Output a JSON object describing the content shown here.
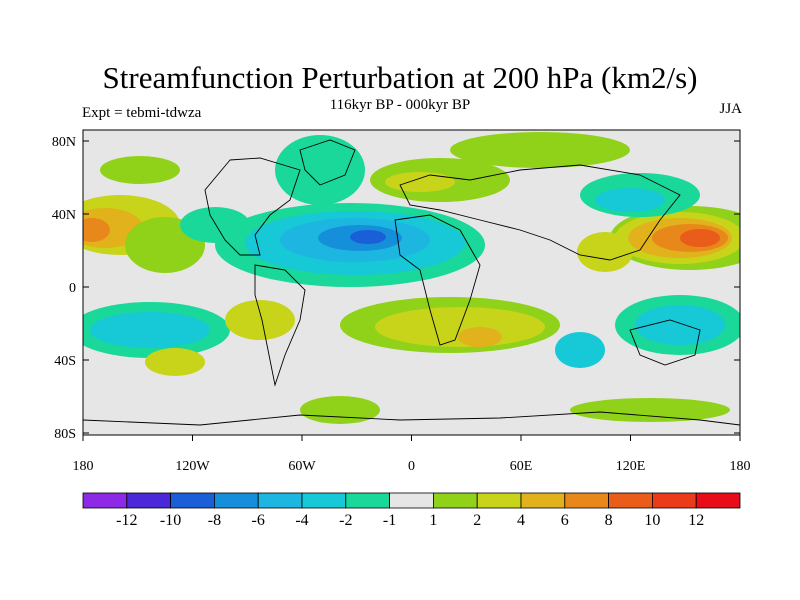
{
  "figure": {
    "title": "Streamfunction Perturbation at 200 hPa (km2/s)",
    "subtitle_center": "116kyr BP - 000kyr BP",
    "subtitle_left": "Expt = tebmi-tdwza",
    "subtitle_right": "JJA"
  },
  "axes": {
    "lat_ticks": [
      "80N",
      "40N",
      "0",
      "40S",
      "80S"
    ],
    "lon_ticks": [
      "180",
      "120W",
      "60W",
      "0",
      "60E",
      "120E",
      "180"
    ]
  },
  "colorbar": {
    "labels": [
      "-12",
      "-10",
      "-8",
      "-6",
      "-4",
      "-2",
      "-1",
      "1",
      "2",
      "4",
      "6",
      "8",
      "10",
      "12"
    ],
    "colors": [
      "#8d2ae6",
      "#4a27d9",
      "#1a5fd8",
      "#168fda",
      "#1db6e0",
      "#17c8d6",
      "#1ad89a",
      "#e6e6e6",
      "#8fd219",
      "#c7d41a",
      "#e1b21b",
      "#e8881a",
      "#e95c1a",
      "#ea3c1a",
      "#e80c1a"
    ]
  }
}
